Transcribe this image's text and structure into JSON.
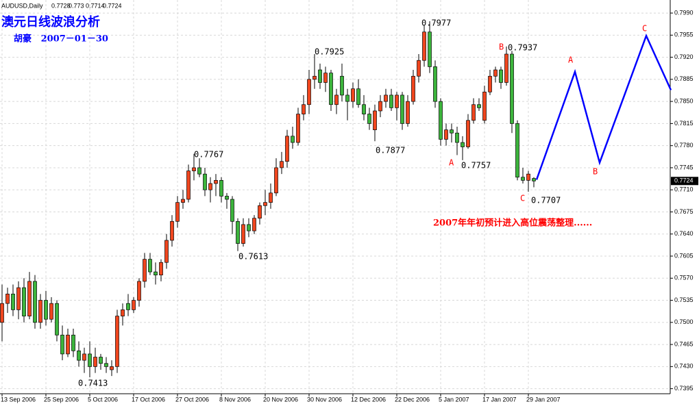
{
  "chart_data": {
    "type": "candlestick",
    "symbol": "AUDUSD,Daily",
    "title": "澳元日线波浪分析",
    "subtitle": "胡豪   2007－01－30",
    "note": "2007年年初预计进入高位震荡整理......",
    "up_color": "#f0461e",
    "down_color": "#3cb43c",
    "grid": true,
    "categories": [
      "13 Sep 2006",
      null,
      null,
      null,
      null,
      null,
      null,
      null,
      "25 Sep 2006",
      null,
      null,
      null,
      null,
      null,
      null,
      null,
      "5 Oct 2006",
      null,
      null,
      null,
      null,
      null,
      null,
      null,
      "17 Oct 2006",
      null,
      null,
      null,
      null,
      null,
      null,
      null,
      "27 Oct 2006",
      null,
      null,
      null,
      null,
      null,
      null,
      null,
      "8 Nov 2006",
      null,
      null,
      null,
      null,
      null,
      null,
      null,
      "20 Nov 2006",
      null,
      null,
      null,
      null,
      null,
      null,
      null,
      "30 Nov 2006",
      null,
      null,
      null,
      null,
      null,
      null,
      null,
      "12 Dec 2006",
      null,
      null,
      null,
      null,
      null,
      null,
      null,
      "22 Dec 2006",
      null,
      null,
      null,
      null,
      null,
      null,
      null,
      "5 Jan 2007",
      null,
      null,
      null,
      null,
      null,
      null,
      null,
      "17 Jan 2007",
      null,
      null,
      null,
      null,
      null,
      null,
      null,
      "29 Jan 2007",
      null
    ],
    "open": [
      0.75,
      0.753,
      0.7545,
      0.752,
      0.7555,
      0.751,
      0.7565,
      0.75,
      0.7535,
      0.7505,
      0.753,
      0.748,
      0.745,
      0.748,
      0.7455,
      0.744,
      0.745,
      0.743,
      0.7445,
      0.7435,
      0.7425,
      0.743,
      0.751,
      0.753,
      0.752,
      0.7535,
      0.7565,
      0.76,
      0.758,
      0.7575,
      0.7595,
      0.763,
      0.766,
      0.769,
      0.7695,
      0.774,
      0.7745,
      0.7735,
      0.771,
      0.772,
      0.7725,
      0.77,
      0.7695,
      0.766,
      0.7625,
      0.7655,
      0.7645,
      0.7665,
      0.7685,
      0.769,
      0.7705,
      0.7745,
      0.7755,
      0.7795,
      0.7785,
      0.783,
      0.7845,
      0.7885,
      0.79,
      0.788,
      0.7895,
      0.7845,
      0.789,
      0.786,
      0.785,
      0.787,
      0.7845,
      0.783,
      0.7805,
      0.7835,
      0.785,
      0.786,
      0.784,
      0.786,
      0.7815,
      0.785,
      0.789,
      0.7915,
      0.796,
      0.7905,
      0.785,
      0.779,
      0.7805,
      0.78,
      0.7785,
      0.7778,
      0.782,
      0.7845,
      0.782,
      0.7865,
      0.789,
      0.79,
      0.788,
      0.7925,
      0.7815,
      0.773,
      0.7725,
      0.7728
    ],
    "high": [
      0.756,
      0.7555,
      0.756,
      0.7565,
      0.757,
      0.758,
      0.7575,
      0.7545,
      0.755,
      0.754,
      0.7535,
      0.7495,
      0.749,
      0.749,
      0.747,
      0.746,
      0.747,
      0.746,
      0.745,
      0.7445,
      0.744,
      0.752,
      0.753,
      0.7545,
      0.754,
      0.757,
      0.761,
      0.761,
      0.7595,
      0.76,
      0.764,
      0.767,
      0.77,
      0.771,
      0.775,
      0.7767,
      0.776,
      0.7745,
      0.773,
      0.7735,
      0.773,
      0.7705,
      0.77,
      0.7665,
      0.7665,
      0.7665,
      0.767,
      0.769,
      0.771,
      0.772,
      0.776,
      0.777,
      0.7805,
      0.781,
      0.784,
      0.786,
      0.79,
      0.7925,
      0.791,
      0.7905,
      0.79,
      0.787,
      0.791,
      0.787,
      0.788,
      0.7885,
      0.786,
      0.784,
      0.7845,
      0.786,
      0.787,
      0.787,
      0.7865,
      0.7865,
      0.786,
      0.79,
      0.7925,
      0.797,
      0.7977,
      0.7915,
      0.7855,
      0.7815,
      0.7815,
      0.781,
      0.7795,
      0.783,
      0.7855,
      0.7855,
      0.7875,
      0.79,
      0.7905,
      0.7905,
      0.7937,
      0.793,
      0.782,
      0.7745,
      0.774,
      0.773
    ],
    "low": [
      0.747,
      0.7515,
      0.751,
      0.7505,
      0.75,
      0.7505,
      0.749,
      0.749,
      0.7495,
      0.75,
      0.747,
      0.744,
      0.7445,
      0.7445,
      0.743,
      0.742,
      0.7413,
      0.742,
      0.7425,
      0.742,
      0.7415,
      0.742,
      0.7495,
      0.751,
      0.7515,
      0.7525,
      0.7555,
      0.7575,
      0.756,
      0.7565,
      0.7585,
      0.762,
      0.765,
      0.768,
      0.769,
      0.7725,
      0.773,
      0.77,
      0.769,
      0.77,
      0.769,
      0.768,
      0.764,
      0.7613,
      0.762,
      0.7635,
      0.764,
      0.7655,
      0.767,
      0.768,
      0.77,
      0.7735,
      0.7745,
      0.7775,
      0.778,
      0.782,
      0.783,
      0.787,
      0.787,
      0.7865,
      0.7835,
      0.783,
      0.785,
      0.782,
      0.784,
      0.784,
      0.782,
      0.7805,
      0.7787,
      0.7825,
      0.784,
      0.7835,
      0.782,
      0.7805,
      0.781,
      0.7845,
      0.788,
      0.7905,
      0.7895,
      0.784,
      0.778,
      0.778,
      0.7785,
      0.7765,
      0.7757,
      0.7775,
      0.7815,
      0.7835,
      0.7815,
      0.786,
      0.788,
      0.787,
      0.7875,
      0.78,
      0.7725,
      0.772,
      0.7707,
      0.7714
    ],
    "close": [
      0.753,
      0.7545,
      0.752,
      0.7555,
      0.751,
      0.7565,
      0.75,
      0.7535,
      0.7505,
      0.753,
      0.748,
      0.745,
      0.748,
      0.7455,
      0.744,
      0.745,
      0.743,
      0.7445,
      0.7435,
      0.743,
      0.743,
      0.751,
      0.752,
      0.752,
      0.7535,
      0.7565,
      0.76,
      0.758,
      0.7575,
      0.7595,
      0.763,
      0.766,
      0.769,
      0.7695,
      0.774,
      0.7745,
      0.7735,
      0.771,
      0.772,
      0.7725,
      0.77,
      0.7695,
      0.766,
      0.7625,
      0.7655,
      0.7645,
      0.7665,
      0.7685,
      0.769,
      0.7705,
      0.7745,
      0.7755,
      0.7795,
      0.7785,
      0.783,
      0.7845,
      0.7885,
      0.789,
      0.788,
      0.7895,
      0.7845,
      0.786,
      0.786,
      0.785,
      0.787,
      0.7845,
      0.783,
      0.7815,
      0.7835,
      0.785,
      0.786,
      0.784,
      0.786,
      0.7815,
      0.785,
      0.789,
      0.7915,
      0.796,
      0.7905,
      0.785,
      0.779,
      0.7805,
      0.78,
      0.7785,
      0.7778,
      0.782,
      0.7845,
      0.784,
      0.7865,
      0.789,
      0.79,
      0.788,
      0.7925,
      0.7815,
      0.773,
      0.7725,
      0.7735,
      0.7724
    ],
    "ylim": [
      0.7387,
      0.8002
    ],
    "yticks": [
      {
        "value": 0.7395,
        "label": "0.7395"
      },
      {
        "value": 0.743,
        "label": "0.7430"
      },
      {
        "value": 0.7465,
        "label": "0.7465"
      },
      {
        "value": 0.75,
        "label": "0.7500"
      },
      {
        "value": 0.7535,
        "label": "0.7535"
      },
      {
        "value": 0.757,
        "label": "0.7570"
      },
      {
        "value": 0.7605,
        "label": "0.7605"
      },
      {
        "value": 0.764,
        "label": "0.7640"
      },
      {
        "value": 0.7675,
        "label": "0.7675"
      },
      {
        "value": 0.771,
        "label": "0.7710"
      },
      {
        "value": 0.7745,
        "label": "0.7745"
      },
      {
        "value": 0.778,
        "label": "0.7780"
      },
      {
        "value": 0.7815,
        "label": "0.7815"
      },
      {
        "value": 0.785,
        "label": "0.7850"
      },
      {
        "value": 0.7885,
        "label": "0.7885"
      },
      {
        "value": 0.792,
        "label": "0.7920"
      },
      {
        "value": 0.7955,
        "label": "0.7955"
      },
      {
        "value": 0.799,
        "label": "0.7990"
      }
    ],
    "projection": {
      "color": "#0000ff",
      "x": [
        97.5,
        104.5,
        109,
        117.5,
        122
      ],
      "values": [
        0.7726,
        0.7897,
        0.7753,
        0.7954,
        0.7868
      ]
    },
    "annotations": [
      {
        "text": "0.7977",
        "color": "#000000"
      },
      {
        "text": "0.7925",
        "color": "#000000"
      },
      {
        "text": "B",
        "color": "#ff0000"
      },
      {
        "text": "0.7937",
        "color": "#000000"
      },
      {
        "text": "0.7767",
        "color": "#000000"
      },
      {
        "text": "0.7877",
        "color": "#000000"
      },
      {
        "text": "A",
        "color": "#ff0000"
      },
      {
        "text": "0.7757",
        "color": "#000000"
      },
      {
        "text": "0.7613",
        "color": "#000000"
      },
      {
        "text": "0.7413",
        "color": "#000000"
      },
      {
        "text": "C",
        "color": "#ff0000"
      },
      {
        "text": "0.7707",
        "color": "#000000"
      },
      {
        "text": "A",
        "color": "#ff0000"
      },
      {
        "text": "B",
        "color": "#ff0000"
      },
      {
        "text": "C",
        "color": "#ff0000"
      }
    ]
  }
}
